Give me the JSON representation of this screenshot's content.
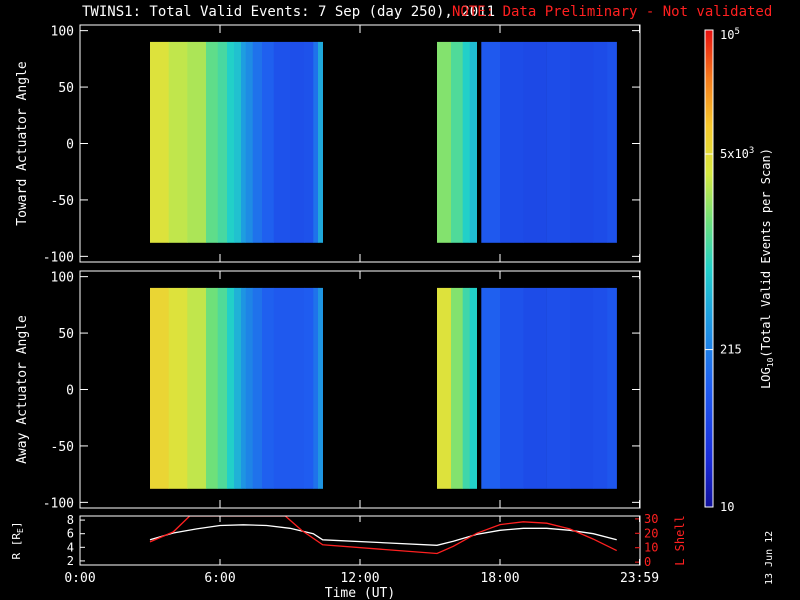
{
  "header": {
    "title": "TWINS1: Total Valid Events:  7 Sep (day 250), 2011",
    "note": "NOTE: Data Preliminary - Not validated"
  },
  "stamp": "13 Jun 12",
  "colors": {
    "note": "#ff2020",
    "l_shell": "#ff2020",
    "radius": "#ffffff",
    "frame": "#ffffff",
    "background": "#000000"
  },
  "chart_data": [
    {
      "type": "heatmap",
      "panel": "toward",
      "ylabel": "Toward Actuator Angle",
      "ylim": [
        -105,
        105
      ],
      "yticks": [
        100,
        50,
        0,
        -50,
        -100
      ],
      "xlim": [
        0,
        24
      ],
      "data_extent_y": [
        -88,
        90
      ],
      "segments": [
        {
          "x_start": 3.0,
          "x_end": 10.4,
          "columns": [
            {
              "x": 3.0,
              "value": 0.72
            },
            {
              "x": 3.8,
              "value": 0.68
            },
            {
              "x": 4.6,
              "value": 0.66
            },
            {
              "x": 5.4,
              "value": 0.58
            },
            {
              "x": 5.9,
              "value": 0.55
            },
            {
              "x": 6.3,
              "value": 0.5
            },
            {
              "x": 6.6,
              "value": 0.47
            },
            {
              "x": 6.9,
              "value": 0.4
            },
            {
              "x": 7.1,
              "value": 0.36
            },
            {
              "x": 7.4,
              "value": 0.3
            },
            {
              "x": 7.8,
              "value": 0.26
            },
            {
              "x": 8.3,
              "value": 0.22
            },
            {
              "x": 9.0,
              "value": 0.21
            },
            {
              "x": 9.6,
              "value": 0.22
            },
            {
              "x": 10.0,
              "value": 0.3
            },
            {
              "x": 10.2,
              "value": 0.42
            }
          ]
        },
        {
          "x_start": 15.3,
          "x_end": 17.0,
          "columns": [
            {
              "x": 15.3,
              "value": 0.62
            },
            {
              "x": 15.9,
              "value": 0.56
            },
            {
              "x": 16.4,
              "value": 0.5
            },
            {
              "x": 16.7,
              "value": 0.46
            }
          ]
        },
        {
          "x_start": 17.2,
          "x_end": 23.0,
          "columns": [
            {
              "x": 17.2,
              "value": 0.24
            },
            {
              "x": 18.0,
              "value": 0.2
            },
            {
              "x": 19.0,
              "value": 0.19
            },
            {
              "x": 20.0,
              "value": 0.2
            },
            {
              "x": 21.0,
              "value": 0.19
            },
            {
              "x": 22.0,
              "value": 0.2
            },
            {
              "x": 22.6,
              "value": 0.22
            }
          ]
        }
      ]
    },
    {
      "type": "heatmap",
      "panel": "away",
      "ylabel": "Away Actuator Angle",
      "ylim": [
        -105,
        105
      ],
      "yticks": [
        100,
        50,
        0,
        -50,
        -100
      ],
      "xlim": [
        0,
        24
      ],
      "data_extent_y": [
        -88,
        90
      ],
      "segments": [
        {
          "x_start": 3.0,
          "x_end": 10.4,
          "columns": [
            {
              "x": 3.0,
              "value": 0.76
            },
            {
              "x": 3.8,
              "value": 0.72
            },
            {
              "x": 4.6,
              "value": 0.68
            },
            {
              "x": 5.4,
              "value": 0.6
            },
            {
              "x": 5.9,
              "value": 0.56
            },
            {
              "x": 6.3,
              "value": 0.5
            },
            {
              "x": 6.6,
              "value": 0.44
            },
            {
              "x": 6.9,
              "value": 0.38
            },
            {
              "x": 7.1,
              "value": 0.34
            },
            {
              "x": 7.4,
              "value": 0.3
            },
            {
              "x": 7.8,
              "value": 0.26
            },
            {
              "x": 8.3,
              "value": 0.24
            },
            {
              "x": 9.0,
              "value": 0.24
            },
            {
              "x": 9.6,
              "value": 0.25
            },
            {
              "x": 10.0,
              "value": 0.3
            },
            {
              "x": 10.2,
              "value": 0.38
            }
          ]
        },
        {
          "x_start": 15.3,
          "x_end": 17.0,
          "columns": [
            {
              "x": 15.3,
              "value": 0.72
            },
            {
              "x": 15.9,
              "value": 0.62
            },
            {
              "x": 16.4,
              "value": 0.54
            },
            {
              "x": 16.7,
              "value": 0.5
            }
          ]
        },
        {
          "x_start": 17.2,
          "x_end": 23.0,
          "columns": [
            {
              "x": 17.2,
              "value": 0.26
            },
            {
              "x": 18.0,
              "value": 0.22
            },
            {
              "x": 19.0,
              "value": 0.2
            },
            {
              "x": 20.0,
              "value": 0.21
            },
            {
              "x": 21.0,
              "value": 0.2
            },
            {
              "x": 22.0,
              "value": 0.21
            },
            {
              "x": 22.6,
              "value": 0.23
            }
          ]
        }
      ]
    },
    {
      "type": "line",
      "panel": "orbit",
      "xlabel": "Time (UT)",
      "xlim": [
        0,
        24
      ],
      "xticks": [
        {
          "x": 0,
          "label": "0:00"
        },
        {
          "x": 6,
          "label": "6:00"
        },
        {
          "x": 12,
          "label": "12:00"
        },
        {
          "x": 18,
          "label": "18:00"
        },
        {
          "x": 23.98,
          "label": "23:59"
        }
      ],
      "left_axis": {
        "ylabel": "R [R",
        "ylabel_sub": "E",
        "ylabel_end": "]",
        "ylim": [
          1.4,
          8.6
        ],
        "yticks": [
          8,
          6,
          4,
          2
        ]
      },
      "right_axis": {
        "ylabel": "L Shell",
        "ylim": [
          -2,
          32
        ],
        "yticks": [
          30,
          20,
          10,
          0
        ]
      },
      "series": [
        {
          "axis": "left",
          "x": [
            3.0,
            4.0,
            5.0,
            6.0,
            7.0,
            8.0,
            9.0,
            10.0,
            10.4,
            15.3,
            16.0,
            17.0,
            18.0,
            19.0,
            20.0,
            21.0,
            22.0,
            23.0
          ],
          "values": [
            5.1,
            6.1,
            6.7,
            7.2,
            7.3,
            7.2,
            6.8,
            6.0,
            5.1,
            4.3,
            4.9,
            5.9,
            6.5,
            6.8,
            6.8,
            6.5,
            6.0,
            5.1
          ]
        },
        {
          "axis": "right",
          "x": [
            3.0,
            4.0,
            4.7,
            8.8,
            9.5,
            10.4,
            15.3,
            16.0,
            17.0,
            18.0,
            19.0,
            20.0,
            21.0,
            22.0,
            23.0
          ],
          "values": [
            14,
            21,
            32,
            32,
            22,
            12,
            6,
            11,
            20,
            26,
            28,
            27,
            23,
            16,
            8
          ]
        }
      ]
    }
  ],
  "colorbar": {
    "label": "LOG",
    "label_sub": "10",
    "label_end": "(Total Valid  Events per Scan)",
    "ticks": [
      {
        "pos": 1.0,
        "base": "10",
        "exp": "5"
      },
      {
        "pos": 0.74,
        "base": "5x10",
        "exp": "3"
      },
      {
        "pos": 0.33,
        "base": "215",
        "exp": ""
      },
      {
        "pos": 0.0,
        "base": "10",
        "exp": ""
      }
    ]
  }
}
